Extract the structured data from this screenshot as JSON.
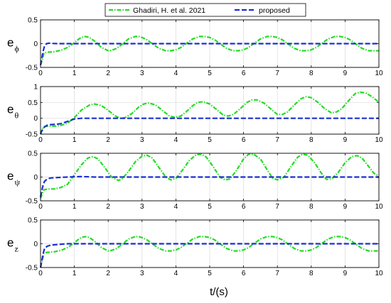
{
  "legend": {
    "entries": [
      {
        "label": "Ghadiri, H. et al. 2021",
        "color": "#22dd22",
        "style": "dashdot"
      },
      {
        "label": "proposed",
        "color": "#1a2fd0",
        "style": "dashed"
      }
    ]
  },
  "xlabel": "t/(s)",
  "chart_data": [
    {
      "type": "line",
      "ylabel_main": "e",
      "ylabel_sub": "ϕ",
      "xlim": [
        0,
        10
      ],
      "ylim": [
        -0.5,
        0.5
      ],
      "xticks": [
        "0",
        "1",
        "2",
        "3",
        "4",
        "5",
        "6",
        "7",
        "8",
        "9",
        "10"
      ],
      "yticks": [
        "-0.5",
        "0",
        "0.5"
      ],
      "grid": true,
      "series": [
        {
          "name": "Ghadiri, H. et al. 2021",
          "color": "#22dd22",
          "x": [
            0,
            0.05,
            0.1,
            0.2,
            0.4,
            0.6,
            0.8,
            1.0,
            1.1,
            1.2,
            1.32,
            1.45,
            1.6,
            1.8,
            2.0,
            2.1,
            2.25,
            2.4,
            2.6,
            2.8,
            2.9,
            3.0,
            3.15,
            3.3,
            3.5,
            3.7,
            3.85,
            4.0,
            4.15,
            4.3,
            4.5,
            4.7,
            4.85,
            5.0,
            5.15,
            5.3,
            5.5,
            5.7,
            5.85,
            6.0,
            6.15,
            6.3,
            6.5,
            6.7,
            6.85,
            7.0,
            7.15,
            7.3,
            7.5,
            7.7,
            7.85,
            8.0,
            8.15,
            8.3,
            8.5,
            8.7,
            8.85,
            9.0,
            9.15,
            9.3,
            9.5,
            9.7,
            9.85,
            10.0
          ],
          "y": [
            -0.45,
            -0.35,
            -0.2,
            -0.18,
            -0.17,
            -0.14,
            -0.08,
            0.02,
            0.08,
            0.13,
            0.15,
            0.13,
            0.05,
            -0.08,
            -0.15,
            -0.14,
            -0.1,
            -0.02,
            0.1,
            0.15,
            0.15,
            0.13,
            0.08,
            0.0,
            -0.1,
            -0.15,
            -0.15,
            -0.13,
            -0.08,
            0.0,
            0.1,
            0.15,
            0.15,
            0.13,
            0.08,
            0.0,
            -0.1,
            -0.15,
            -0.15,
            -0.13,
            -0.08,
            0.0,
            0.1,
            0.15,
            0.15,
            0.13,
            0.08,
            0.0,
            -0.1,
            -0.15,
            -0.15,
            -0.13,
            -0.08,
            0.0,
            0.1,
            0.15,
            0.15,
            0.13,
            0.08,
            0.0,
            -0.1,
            -0.15,
            -0.15,
            -0.15
          ]
        },
        {
          "name": "proposed",
          "color": "#1a2fd0",
          "x": [
            0,
            0.04,
            0.08,
            0.12,
            0.18,
            0.25,
            0.35,
            0.5,
            1,
            2,
            3,
            4,
            5,
            6,
            7,
            8,
            9,
            10
          ],
          "y": [
            -0.45,
            -0.3,
            -0.15,
            -0.05,
            0.0,
            0.01,
            0.005,
            0.0,
            0,
            0,
            0,
            0,
            0,
            0,
            0,
            0,
            0,
            0
          ]
        }
      ]
    },
    {
      "type": "line",
      "ylabel_main": "e",
      "ylabel_sub": "θ",
      "xlim": [
        0,
        10
      ],
      "ylim": [
        -0.5,
        1
      ],
      "xticks": [
        "0",
        "1",
        "2",
        "3",
        "4",
        "5",
        "6",
        "7",
        "8",
        "9",
        "10"
      ],
      "yticks": [
        "-0.5",
        "0",
        "0.5",
        "1"
      ],
      "grid": true,
      "series": [
        {
          "name": "Ghadiri, H. et al. 2021",
          "color": "#22dd22",
          "x": [
            0,
            0.05,
            0.1,
            0.2,
            0.4,
            0.6,
            0.8,
            1.0,
            1.2,
            1.45,
            1.6,
            1.8,
            2.0,
            2.2,
            2.35,
            2.5,
            2.7,
            2.9,
            3.05,
            3.2,
            3.4,
            3.6,
            3.8,
            3.95,
            4.15,
            4.3,
            4.5,
            4.65,
            4.8,
            5.0,
            5.2,
            5.4,
            5.55,
            5.7,
            5.9,
            6.1,
            6.25,
            6.4,
            6.6,
            6.8,
            7.0,
            7.15,
            7.3,
            7.5,
            7.7,
            7.85,
            8.0,
            8.2,
            8.4,
            8.6,
            8.75,
            8.9,
            9.1,
            9.3,
            9.45,
            9.6,
            9.8,
            10.0
          ],
          "y": [
            -0.5,
            -0.35,
            -0.27,
            -0.25,
            -0.25,
            -0.23,
            -0.15,
            0.02,
            0.25,
            0.42,
            0.45,
            0.4,
            0.25,
            0.08,
            0.0,
            0.02,
            0.15,
            0.35,
            0.45,
            0.48,
            0.42,
            0.25,
            0.08,
            0.03,
            0.07,
            0.2,
            0.4,
            0.5,
            0.52,
            0.45,
            0.28,
            0.1,
            0.07,
            0.12,
            0.3,
            0.5,
            0.58,
            0.58,
            0.48,
            0.3,
            0.12,
            0.12,
            0.2,
            0.42,
            0.62,
            0.68,
            0.65,
            0.5,
            0.3,
            0.17,
            0.2,
            0.3,
            0.55,
            0.78,
            0.82,
            0.8,
            0.68,
            0.5
          ]
        },
        {
          "name": "proposed",
          "color": "#1a2fd0",
          "x": [
            0,
            0.04,
            0.08,
            0.12,
            0.2,
            0.3,
            0.45,
            0.6,
            0.8,
            1.0,
            1.2,
            2,
            3,
            4,
            5,
            6,
            7,
            8,
            9,
            10
          ],
          "y": [
            -0.5,
            -0.4,
            -0.32,
            -0.27,
            -0.22,
            -0.2,
            -0.19,
            -0.17,
            -0.1,
            -0.02,
            0.0,
            0,
            0,
            0,
            0,
            0,
            0,
            0,
            0,
            0
          ]
        }
      ]
    },
    {
      "type": "line",
      "ylabel_main": "e",
      "ylabel_sub": "ψ",
      "xlim": [
        0,
        10
      ],
      "ylim": [
        -0.5,
        0.5
      ],
      "xticks": [
        "0",
        "1",
        "2",
        "3",
        "4",
        "5",
        "6",
        "7",
        "8",
        "9",
        "10"
      ],
      "yticks": [
        "-0.5",
        "0",
        "0.5"
      ],
      "grid": true,
      "series": [
        {
          "name": "Ghadiri, H. et al. 2021",
          "color": "#22dd22",
          "x": [
            0,
            0.05,
            0.1,
            0.2,
            0.4,
            0.6,
            0.8,
            1.0,
            1.2,
            1.4,
            1.55,
            1.7,
            1.9,
            2.1,
            2.3,
            2.4,
            2.6,
            2.8,
            3.0,
            3.15,
            3.3,
            3.5,
            3.7,
            3.85,
            4.0,
            4.2,
            4.4,
            4.6,
            4.75,
            4.9,
            5.1,
            5.3,
            5.45,
            5.6,
            5.8,
            6.0,
            6.15,
            6.3,
            6.5,
            6.7,
            6.85,
            7.0,
            7.2,
            7.4,
            7.6,
            7.75,
            7.9,
            8.1,
            8.3,
            8.45,
            8.6,
            8.8,
            9.0,
            9.2,
            9.35,
            9.5,
            9.7,
            9.85,
            10.0
          ],
          "y": [
            -0.45,
            -0.35,
            -0.27,
            -0.25,
            -0.25,
            -0.22,
            -0.15,
            0.05,
            0.25,
            0.4,
            0.43,
            0.38,
            0.2,
            0.0,
            -0.07,
            -0.05,
            0.12,
            0.32,
            0.44,
            0.46,
            0.4,
            0.2,
            0.0,
            -0.06,
            -0.03,
            0.15,
            0.35,
            0.47,
            0.48,
            0.42,
            0.22,
            0.0,
            -0.06,
            -0.04,
            0.15,
            0.38,
            0.48,
            0.48,
            0.38,
            0.15,
            -0.02,
            -0.06,
            0.0,
            0.22,
            0.42,
            0.48,
            0.46,
            0.3,
            0.08,
            -0.05,
            -0.04,
            0.1,
            0.3,
            0.43,
            0.45,
            0.4,
            0.22,
            0.08,
            0.02
          ]
        },
        {
          "name": "proposed",
          "color": "#1a2fd0",
          "x": [
            0,
            0.04,
            0.08,
            0.12,
            0.2,
            0.3,
            0.5,
            0.8,
            1.2,
            1.6,
            2,
            3,
            4,
            5,
            6,
            7,
            8,
            9,
            10
          ],
          "y": [
            -0.42,
            -0.28,
            -0.16,
            -0.09,
            -0.04,
            -0.02,
            -0.01,
            0.0,
            0.01,
            0.0,
            0,
            0,
            0,
            0,
            0,
            0,
            0,
            0,
            0
          ]
        }
      ]
    },
    {
      "type": "line",
      "ylabel_main": "e",
      "ylabel_sub": "z",
      "xlim": [
        0,
        10
      ],
      "ylim": [
        -0.5,
        0.5
      ],
      "xticks": [
        "0",
        "1",
        "2",
        "3",
        "4",
        "5",
        "6",
        "7",
        "8",
        "9",
        "10"
      ],
      "yticks": [
        "-0.5",
        "0",
        "0.5"
      ],
      "grid": true,
      "series": [
        {
          "name": "Ghadiri, H. et al. 2021",
          "color": "#22dd22",
          "x": [
            0,
            0.05,
            0.1,
            0.2,
            0.4,
            0.6,
            0.8,
            1.0,
            1.1,
            1.2,
            1.32,
            1.45,
            1.6,
            1.8,
            2.0,
            2.1,
            2.25,
            2.4,
            2.6,
            2.8,
            2.9,
            3.0,
            3.15,
            3.3,
            3.5,
            3.7,
            3.85,
            4.0,
            4.15,
            4.3,
            4.5,
            4.7,
            4.85,
            5.0,
            5.15,
            5.3,
            5.5,
            5.7,
            5.85,
            6.0,
            6.15,
            6.3,
            6.5,
            6.7,
            6.85,
            7.0,
            7.15,
            7.3,
            7.5,
            7.7,
            7.85,
            8.0,
            8.15,
            8.3,
            8.5,
            8.7,
            8.85,
            9.0,
            9.15,
            9.3,
            9.5,
            9.7,
            9.85,
            10.0
          ],
          "y": [
            -0.5,
            -0.35,
            -0.2,
            -0.18,
            -0.17,
            -0.14,
            -0.08,
            0.02,
            0.08,
            0.13,
            0.15,
            0.13,
            0.05,
            -0.08,
            -0.15,
            -0.14,
            -0.1,
            -0.02,
            0.1,
            0.15,
            0.15,
            0.13,
            0.08,
            0.0,
            -0.1,
            -0.15,
            -0.15,
            -0.13,
            -0.08,
            0.0,
            0.1,
            0.15,
            0.15,
            0.13,
            0.08,
            0.0,
            -0.1,
            -0.15,
            -0.15,
            -0.13,
            -0.08,
            0.0,
            0.1,
            0.15,
            0.15,
            0.13,
            0.08,
            0.0,
            -0.1,
            -0.15,
            -0.15,
            -0.13,
            -0.08,
            0.0,
            0.1,
            0.15,
            0.15,
            0.13,
            0.08,
            0.0,
            -0.1,
            -0.15,
            -0.15,
            -0.15
          ]
        },
        {
          "name": "proposed",
          "color": "#1a2fd0",
          "x": [
            0,
            0.04,
            0.08,
            0.12,
            0.2,
            0.3,
            0.45,
            0.6,
            0.8,
            1,
            2,
            3,
            4,
            5,
            6,
            7,
            8,
            9,
            10
          ],
          "y": [
            -0.5,
            -0.35,
            -0.2,
            -0.1,
            -0.05,
            -0.03,
            -0.02,
            -0.01,
            0.0,
            0,
            0,
            0,
            0,
            0,
            0,
            0,
            0,
            0,
            0
          ]
        }
      ]
    }
  ]
}
